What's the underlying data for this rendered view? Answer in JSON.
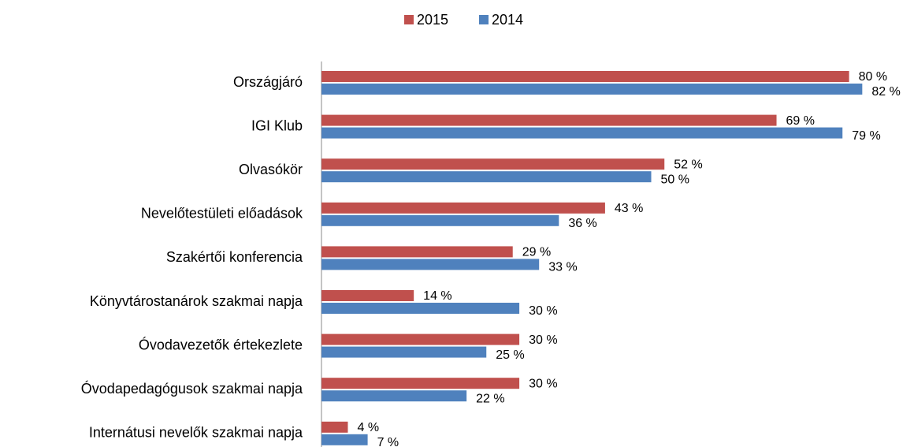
{
  "chart_data": {
    "type": "hbar",
    "categories": [
      "Országjáró",
      "IGI Klub",
      "Olvasókör",
      "Nevelőtestületi előadások",
      "Szakértői konferencia",
      "Könyvtárostanárok szakmai napja",
      "Óvodavezetők értekezlete",
      "Óvodapedagógusok szakmai napja",
      "Internátusi nevelők szakmai napja"
    ],
    "series": [
      {
        "name": "2015",
        "color": "#c0504d",
        "values": [
          80,
          69,
          52,
          43,
          29,
          14,
          30,
          30,
          4
        ],
        "value_labels": [
          "80 %",
          "69 %",
          "52 %",
          "43 %",
          "29 %",
          "14 %",
          "30 %",
          "30 %",
          "4 %"
        ]
      },
      {
        "name": "2014",
        "color": "#4f81bd",
        "values": [
          82,
          79,
          50,
          36,
          33,
          30,
          25,
          22,
          7
        ],
        "value_labels": [
          "82 %",
          "79 %",
          "50 %",
          "36 %",
          "33 %",
          "30 %",
          "25 %",
          "22 %",
          "7 %"
        ]
      }
    ],
    "xlim": [
      0,
      100
    ],
    "legend": "top"
  }
}
